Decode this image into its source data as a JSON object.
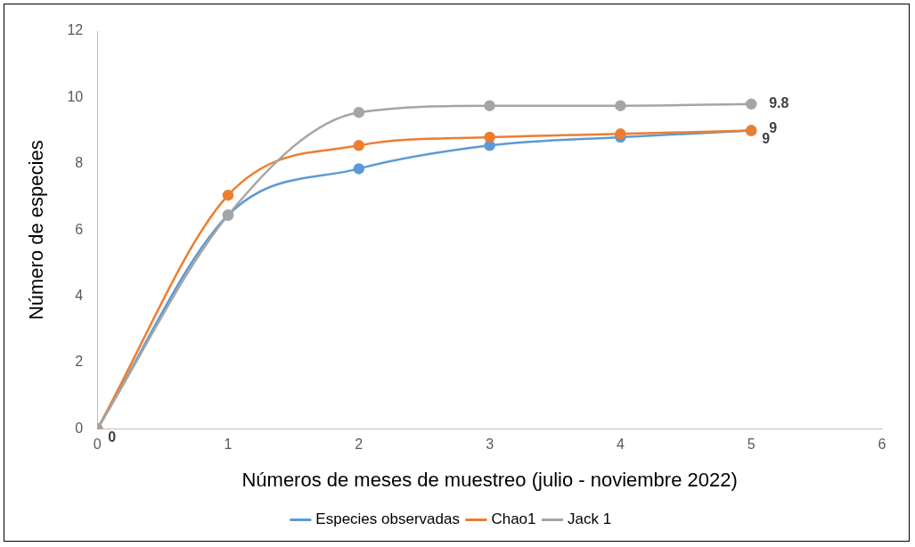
{
  "chart_data": {
    "type": "line",
    "xlabel": "Números de meses de muestreo (julio - noviembre 2022)",
    "ylabel": "Número de especies",
    "x": [
      0,
      1,
      2,
      3,
      4,
      5
    ],
    "xlim": [
      0,
      6
    ],
    "xticks": [
      0,
      1,
      2,
      3,
      4,
      5,
      6
    ],
    "ylim": [
      0,
      12
    ],
    "yticks": [
      0,
      2,
      4,
      6,
      8,
      10,
      12
    ],
    "grid": false,
    "legend": "bottom",
    "marker": "circle",
    "line_style": "solid",
    "series": [
      {
        "name": "Especies observadas",
        "color": "#5b9bd5",
        "values": [
          0,
          6.45,
          7.85,
          8.55,
          8.8,
          9
        ],
        "value_labels": [
          "0",
          null,
          null,
          null,
          null,
          "9"
        ]
      },
      {
        "name": "Chao1",
        "color": "#ed7d31",
        "values": [
          0,
          7.05,
          8.55,
          8.8,
          8.9,
          9
        ],
        "value_labels": [
          null,
          null,
          null,
          null,
          null,
          "9"
        ]
      },
      {
        "name": "Jack 1",
        "color": "#a5a5a5",
        "values": [
          0,
          6.45,
          9.55,
          9.75,
          9.75,
          9.8
        ],
        "value_labels": [
          null,
          null,
          null,
          null,
          null,
          "9.8"
        ]
      }
    ]
  }
}
